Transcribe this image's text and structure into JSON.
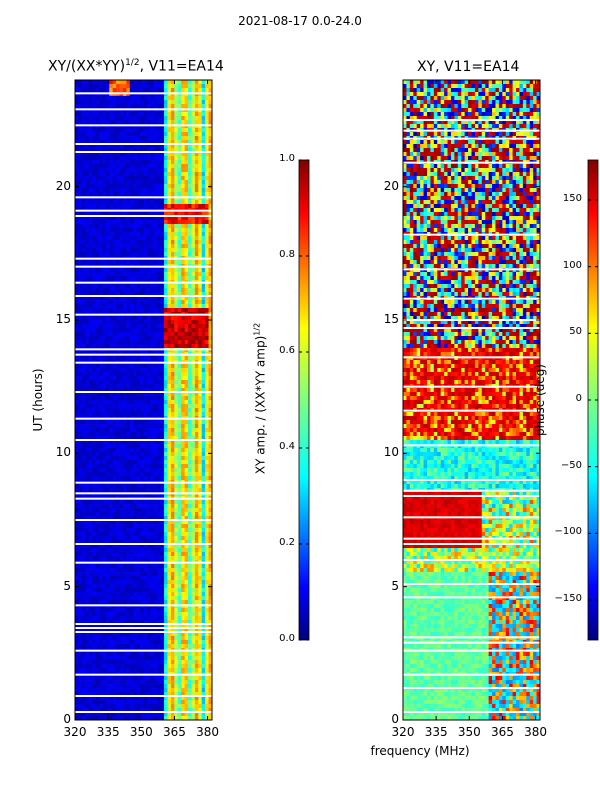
{
  "figure": {
    "suptitle": "2021-08-17 0.0-24.0",
    "shared_xlabel": "frequency (MHz)"
  },
  "colors": {
    "jet": [
      "#00007f",
      "#0000ff",
      "#007fff",
      "#00ffff",
      "#7fff7f",
      "#ffff00",
      "#ff7f00",
      "#ff0000",
      "#7f0000"
    ],
    "gap": "#ffffff",
    "frame": "#000000"
  },
  "chart_data": [
    {
      "type": "heatmap",
      "title_main": "XY/(XX*YY)",
      "title_sup": "1/2",
      "title_tail": ", V11=EA14",
      "xlabel": "",
      "ylabel": "UT (hours)",
      "xlim": [
        320,
        382
      ],
      "ylim": [
        0,
        24
      ],
      "xticks": [
        320,
        335,
        350,
        365,
        380
      ],
      "yticks": [
        0,
        5,
        10,
        15,
        20
      ],
      "colorbar": {
        "label_main": "XY amp. / (XX*YY amp)",
        "label_sup": "1/2",
        "range": [
          0.0,
          1.0
        ],
        "ticks": [
          "0.0",
          "0.2",
          "0.4",
          "0.6",
          "0.8",
          "1.0"
        ],
        "tick_values": [
          0.0,
          0.2,
          0.4,
          0.6,
          0.8,
          1.0
        ]
      },
      "description_bands": [
        {
          "x_range": [
            320,
            360
          ],
          "typical_value": 0.08
        },
        {
          "x_range": [
            360,
            382
          ],
          "typical_value": 0.45
        },
        {
          "y_range": [
            14.0,
            15.5
          ],
          "x_range": [
            360,
            380
          ],
          "typical_value": 0.9
        },
        {
          "y_range": [
            18.5,
            19.5
          ],
          "x_range": [
            360,
            380
          ],
          "typical_value": 0.85
        }
      ]
    },
    {
      "type": "heatmap",
      "title_main": "XY, V11=EA14",
      "xlabel": "frequency (MHz)",
      "ylabel": "",
      "xlim": [
        320,
        382
      ],
      "ylim": [
        0,
        24
      ],
      "xticks": [
        320,
        335,
        350,
        365,
        380
      ],
      "yticks": [
        0,
        5,
        10,
        15,
        20
      ],
      "colorbar": {
        "label_main": "phase (deg)",
        "range": [
          -180,
          180
        ],
        "ticks": [
          "−150",
          "−100",
          "−50",
          "0",
          "50",
          "100",
          "150"
        ],
        "tick_values": [
          -150,
          -100,
          -50,
          0,
          50,
          100,
          150
        ]
      },
      "description_bands": [
        {
          "y_range": [
            0,
            5.5
          ],
          "typical_value": -20
        },
        {
          "y_range": [
            6.5,
            8.5
          ],
          "x_range": [
            320,
            355
          ],
          "typical_value": 160
        },
        {
          "y_range": [
            9,
            10.5
          ],
          "typical_value": -60
        },
        {
          "y_range": [
            10.5,
            14
          ],
          "typical_value": 150
        }
      ]
    }
  ]
}
